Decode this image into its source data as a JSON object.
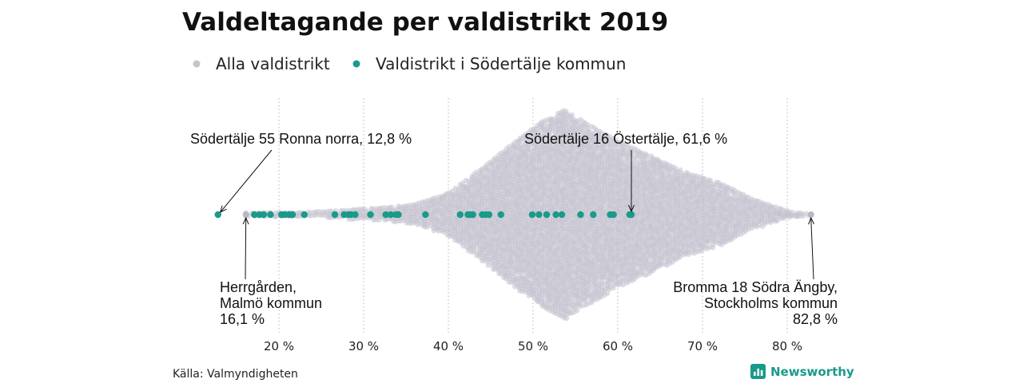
{
  "chart_data": {
    "type": "scatter",
    "title": "Valdeltagande per valdistrikt 2019",
    "xlabel": "",
    "ylabel": "",
    "xlim": [
      10,
      85
    ],
    "x_ticks": [
      20,
      30,
      40,
      50,
      60,
      70,
      80
    ],
    "x_tick_labels": [
      "20 %",
      "30 %",
      "40 %",
      "50 %",
      "60 %",
      "70 %",
      "80 %"
    ],
    "grid": "vertical-dotted",
    "legend": {
      "placement": "top-left",
      "entries": [
        {
          "label": "Alla valdistrikt",
          "color": "#c4c3cf"
        },
        {
          "label": "Valdistrikt i Södertälje kommun",
          "color": "#1a9a8a"
        }
      ]
    },
    "distribution_profile": [
      [
        16.1,
        0
      ],
      [
        20,
        1
      ],
      [
        24,
        2
      ],
      [
        28,
        4
      ],
      [
        32,
        6
      ],
      [
        36,
        9
      ],
      [
        40,
        20
      ],
      [
        44,
        44
      ],
      [
        48,
        70
      ],
      [
        51,
        88
      ],
      [
        53.8,
        100
      ],
      [
        56,
        88
      ],
      [
        60,
        70
      ],
      [
        64,
        55
      ],
      [
        68,
        40
      ],
      [
        72,
        30
      ],
      [
        76,
        14
      ],
      [
        79,
        6
      ],
      [
        81,
        1
      ],
      [
        82.8,
        0
      ]
    ],
    "series": [
      {
        "name": "Valdistrikt i Södertälje kommun",
        "color": "#1a9a8a",
        "values": [
          12.8,
          17.1,
          17.7,
          18.2,
          19.0,
          20.3,
          20.7,
          21.2,
          21.6,
          23.0,
          26.6,
          27.7,
          28.2,
          28.5,
          29.0,
          30.8,
          32.6,
          33.2,
          33.8,
          34.1,
          37.3,
          41.4,
          42.3,
          42.6,
          42.9,
          44.0,
          44.4,
          44.8,
          46.2,
          49.9,
          50.7,
          51.6,
          52.7,
          53.4,
          55.6,
          57.1,
          59.1,
          59.5,
          61.4,
          61.6
        ]
      }
    ],
    "annotations": [
      {
        "label_lines": [
          "Södertälje 55 Ronna norra, 12,8 %"
        ],
        "x": 12.8,
        "anchor": "above"
      },
      {
        "label_lines": [
          "Herrgården,",
          "Malmö kommun",
          "16,1 %"
        ],
        "x": 16.1,
        "anchor": "below"
      },
      {
        "label_lines": [
          "Södertälje 16 Östertälje, 61,6 %"
        ],
        "x": 61.6,
        "anchor": "above"
      },
      {
        "label_lines": [
          "Bromma 18 Södra Ängby,",
          "Stockholms kommun",
          "82,8 %"
        ],
        "x": 82.8,
        "anchor": "below"
      }
    ],
    "source": "Källa: Valmyndigheten",
    "brand": "Newsworthy"
  }
}
